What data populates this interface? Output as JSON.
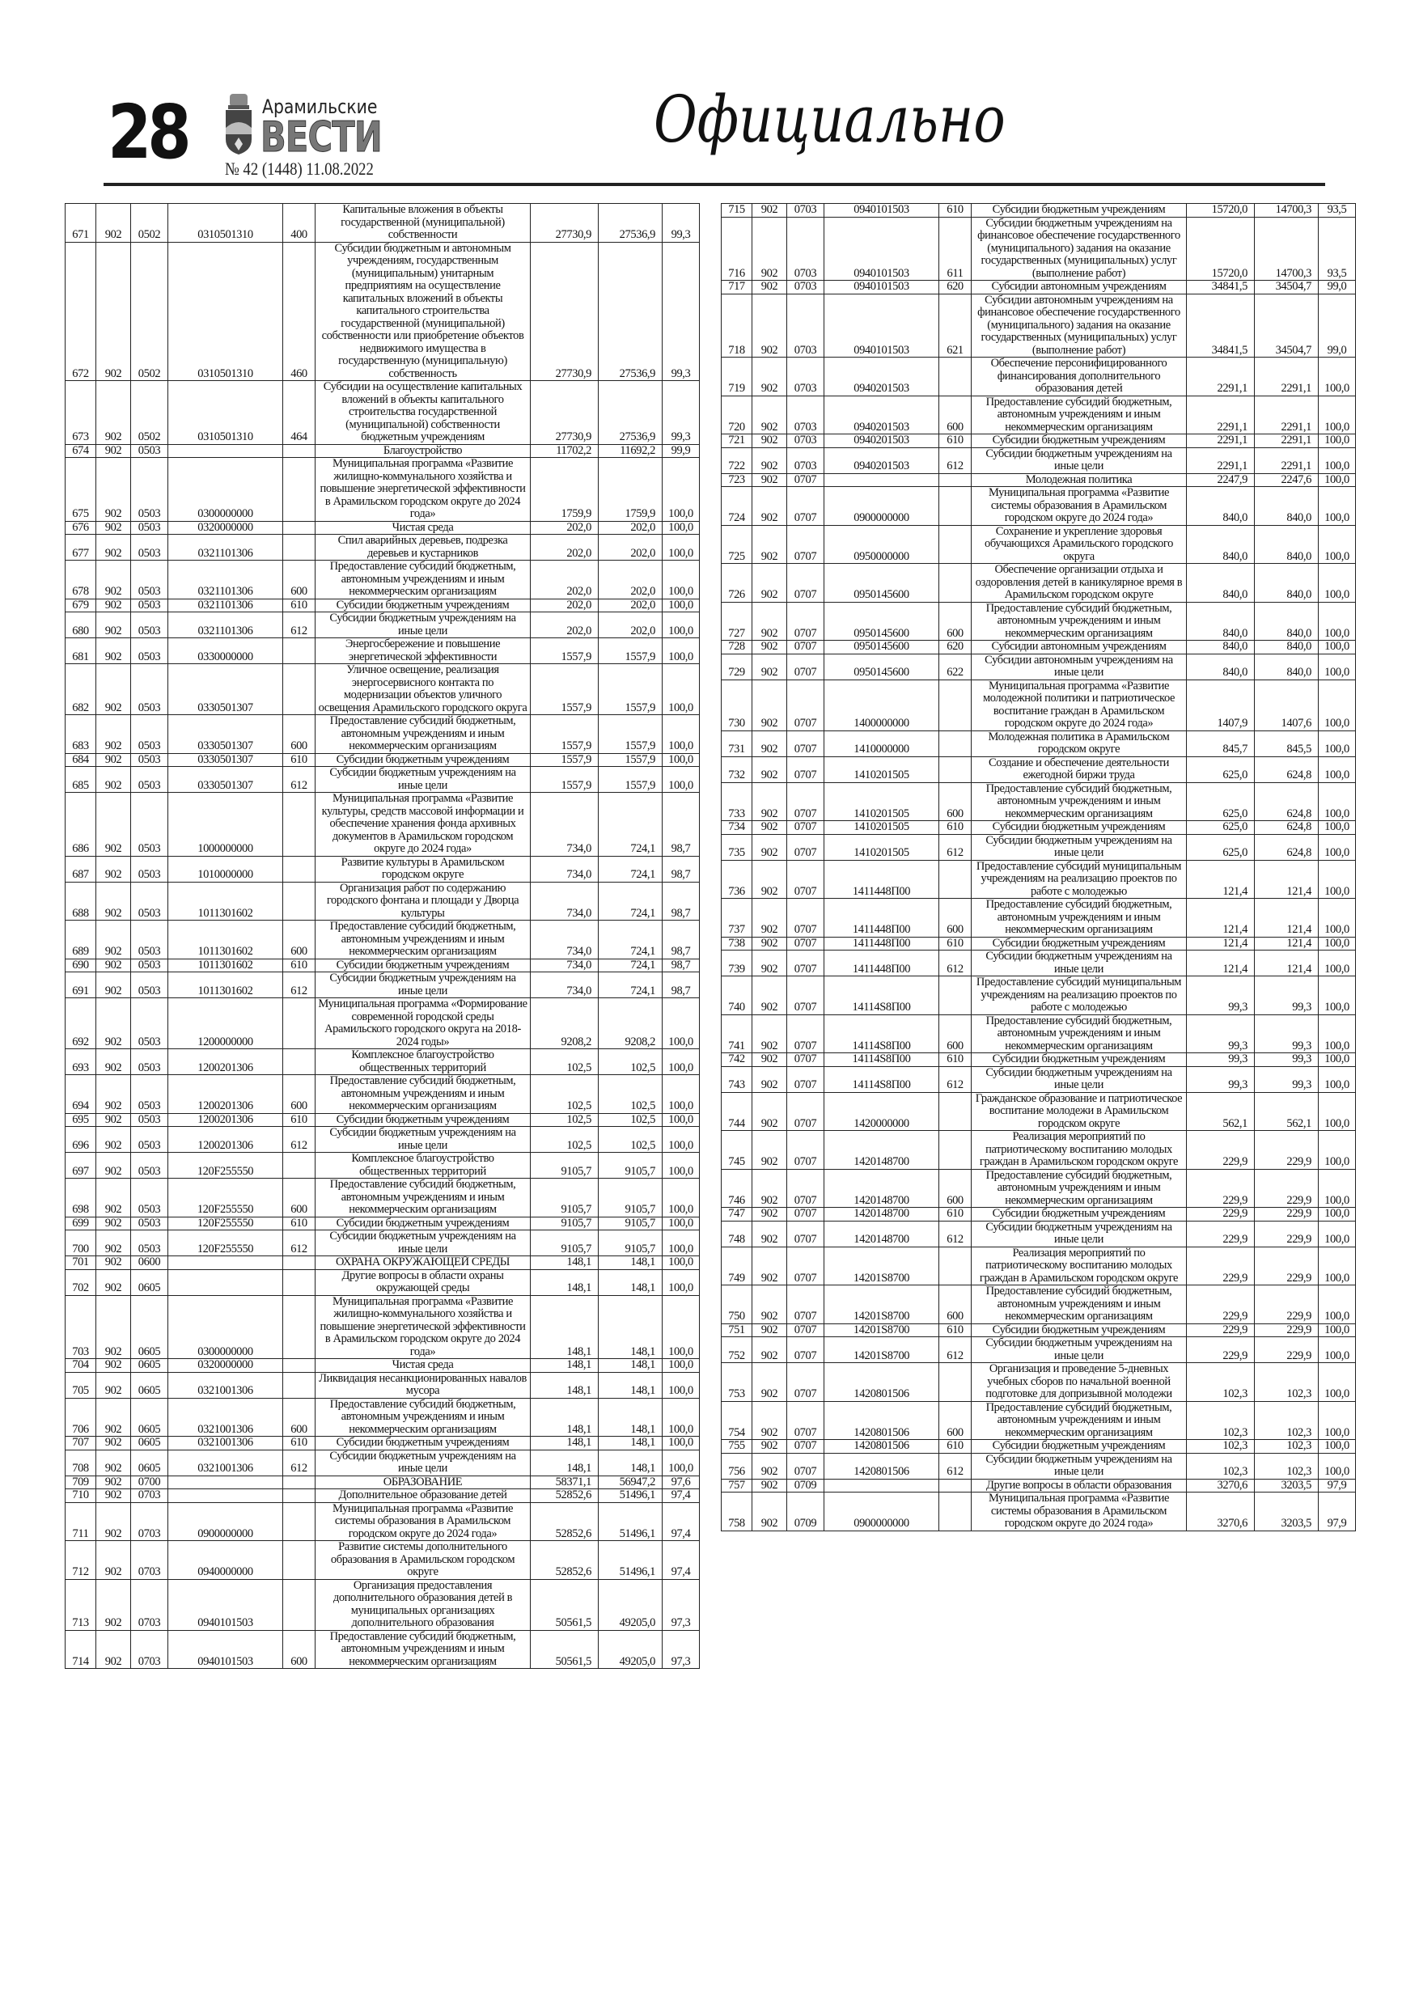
{
  "header": {
    "page_number": "28",
    "brand_top": "Арамильские",
    "brand_main": "ВЕСТИ",
    "issue": "№ 42 (1448) 11.08.2022",
    "section": "Официально"
  },
  "left_table": [
    [
      "671",
      "902",
      "0502",
      "0310501310",
      "400",
      "Капитальные вложения в объекты государственной (муниципальной) собственности",
      "27730,9",
      "27536,9",
      "99,3"
    ],
    [
      "672",
      "902",
      "0502",
      "0310501310",
      "460",
      "Субсидии бюджетным и автономным учреждениям, государственным (муниципальным) унитарным предприятиям на осуществление капитальных вложений в объекты капитального строительства государственной (муниципальной) собственности или приобретение объектов недвижимого имущества в государственную (муниципальную) собственность",
      "27730,9",
      "27536,9",
      "99,3"
    ],
    [
      "673",
      "902",
      "0502",
      "0310501310",
      "464",
      "Субсидии на осуществление капитальных вложений в объекты капитального строительства государственной (муниципальной) собственности бюджетным учреждениям",
      "27730,9",
      "27536,9",
      "99,3"
    ],
    [
      "674",
      "902",
      "0503",
      "",
      "",
      "Благоустройство",
      "11702,2",
      "11692,2",
      "99,9"
    ],
    [
      "675",
      "902",
      "0503",
      "0300000000",
      "",
      "Муниципальная программа «Развитие жилищно-коммунального хозяйства и повышение энергетической эффективности в Арамильском городском округе до 2024 года»",
      "1759,9",
      "1759,9",
      "100,0"
    ],
    [
      "676",
      "902",
      "0503",
      "0320000000",
      "",
      "Чистая среда",
      "202,0",
      "202,0",
      "100,0"
    ],
    [
      "677",
      "902",
      "0503",
      "0321101306",
      "",
      "Спил аварийных деревьев, подрезка деревьев и кустарников",
      "202,0",
      "202,0",
      "100,0"
    ],
    [
      "678",
      "902",
      "0503",
      "0321101306",
      "600",
      "Предоставление субсидий бюджетным, автономным учреждениям и иным некоммерческим организациям",
      "202,0",
      "202,0",
      "100,0"
    ],
    [
      "679",
      "902",
      "0503",
      "0321101306",
      "610",
      "Субсидии бюджетным учреждениям",
      "202,0",
      "202,0",
      "100,0"
    ],
    [
      "680",
      "902",
      "0503",
      "0321101306",
      "612",
      "Субсидии бюджетным учреждениям на иные цели",
      "202,0",
      "202,0",
      "100,0"
    ],
    [
      "681",
      "902",
      "0503",
      "0330000000",
      "",
      "Энергосбережение и повышение энергетической эффективности",
      "1557,9",
      "1557,9",
      "100,0"
    ],
    [
      "682",
      "902",
      "0503",
      "0330501307",
      "",
      "Уличное освещение, реализация энергосервисного контакта по модернизации объектов уличного освещения Арамильского городского округа",
      "1557,9",
      "1557,9",
      "100,0"
    ],
    [
      "683",
      "902",
      "0503",
      "0330501307",
      "600",
      "Предоставление субсидий бюджетным, автономным учреждениям и иным некоммерческим организациям",
      "1557,9",
      "1557,9",
      "100,0"
    ],
    [
      "684",
      "902",
      "0503",
      "0330501307",
      "610",
      "Субсидии бюджетным учреждениям",
      "1557,9",
      "1557,9",
      "100,0"
    ],
    [
      "685",
      "902",
      "0503",
      "0330501307",
      "612",
      "Субсидии бюджетным учреждениям на иные цели",
      "1557,9",
      "1557,9",
      "100,0"
    ],
    [
      "686",
      "902",
      "0503",
      "1000000000",
      "",
      "Муниципальная программа «Развитие культуры, средств массовой информации и обеспечение хранения фонда архивных документов в Арамильском городском округе до 2024 года»",
      "734,0",
      "724,1",
      "98,7"
    ],
    [
      "687",
      "902",
      "0503",
      "1010000000",
      "",
      "Развитие культуры в Арамильском городском округе",
      "734,0",
      "724,1",
      "98,7"
    ],
    [
      "688",
      "902",
      "0503",
      "1011301602",
      "",
      "Организация работ по содержанию городского фонтана и площади у Дворца культуры",
      "734,0",
      "724,1",
      "98,7"
    ],
    [
      "689",
      "902",
      "0503",
      "1011301602",
      "600",
      "Предоставление субсидий бюджетным, автономным учреждениям и иным некоммерческим организациям",
      "734,0",
      "724,1",
      "98,7"
    ],
    [
      "690",
      "902",
      "0503",
      "1011301602",
      "610",
      "Субсидии бюджетным учреждениям",
      "734,0",
      "724,1",
      "98,7"
    ],
    [
      "691",
      "902",
      "0503",
      "1011301602",
      "612",
      "Субсидии бюджетным учреждениям на иные цели",
      "734,0",
      "724,1",
      "98,7"
    ],
    [
      "692",
      "902",
      "0503",
      "1200000000",
      "",
      "Муниципальная программа «Формирование современной городской среды Арамильского городского округа на 2018-2024 годы»",
      "9208,2",
      "9208,2",
      "100,0"
    ],
    [
      "693",
      "902",
      "0503",
      "1200201306",
      "",
      "Комплексное благоустройство общественных территорий",
      "102,5",
      "102,5",
      "100,0"
    ],
    [
      "694",
      "902",
      "0503",
      "1200201306",
      "600",
      "Предоставление субсидий бюджетным, автономным учреждениям и иным некоммерческим организациям",
      "102,5",
      "102,5",
      "100,0"
    ],
    [
      "695",
      "902",
      "0503",
      "1200201306",
      "610",
      "Субсидии бюджетным учреждениям",
      "102,5",
      "102,5",
      "100,0"
    ],
    [
      "696",
      "902",
      "0503",
      "1200201306",
      "612",
      "Субсидии бюджетным учреждениям на иные цели",
      "102,5",
      "102,5",
      "100,0"
    ],
    [
      "697",
      "902",
      "0503",
      "120F255550",
      "",
      "Комплексное благоустройство общественных территорий",
      "9105,7",
      "9105,7",
      "100,0"
    ],
    [
      "698",
      "902",
      "0503",
      "120F255550",
      "600",
      "Предоставление субсидий бюджетным, автономным учреждениям и иным некоммерческим организациям",
      "9105,7",
      "9105,7",
      "100,0"
    ],
    [
      "699",
      "902",
      "0503",
      "120F255550",
      "610",
      "Субсидии бюджетным учреждениям",
      "9105,7",
      "9105,7",
      "100,0"
    ],
    [
      "700",
      "902",
      "0503",
      "120F255550",
      "612",
      "Субсидии бюджетным учреждениям на иные цели",
      "9105,7",
      "9105,7",
      "100,0"
    ],
    [
      "701",
      "902",
      "0600",
      "",
      "",
      "ОХРАНА ОКРУЖАЮЩЕЙ СРЕДЫ",
      "148,1",
      "148,1",
      "100,0"
    ],
    [
      "702",
      "902",
      "0605",
      "",
      "",
      "Другие вопросы в области охраны окружающей среды",
      "148,1",
      "148,1",
      "100,0"
    ],
    [
      "703",
      "902",
      "0605",
      "0300000000",
      "",
      "Муниципальная программа «Развитие жилищно-коммунального хозяйства и повышение энергетической эффективности в Арамильском городском округе до 2024 года»",
      "148,1",
      "148,1",
      "100,0"
    ],
    [
      "704",
      "902",
      "0605",
      "0320000000",
      "",
      "Чистая среда",
      "148,1",
      "148,1",
      "100,0"
    ],
    [
      "705",
      "902",
      "0605",
      "0321001306",
      "",
      "Ликвидация несанкционированных навалов мусора",
      "148,1",
      "148,1",
      "100,0"
    ],
    [
      "706",
      "902",
      "0605",
      "0321001306",
      "600",
      "Предоставление субсидий бюджетным, автономным учреждениям и иным некоммерческим организациям",
      "148,1",
      "148,1",
      "100,0"
    ],
    [
      "707",
      "902",
      "0605",
      "0321001306",
      "610",
      "Субсидии бюджетным учреждениям",
      "148,1",
      "148,1",
      "100,0"
    ],
    [
      "708",
      "902",
      "0605",
      "0321001306",
      "612",
      "Субсидии бюджетным учреждениям на иные цели",
      "148,1",
      "148,1",
      "100,0"
    ],
    [
      "709",
      "902",
      "0700",
      "",
      "",
      "ОБРАЗОВАНИЕ",
      "58371,1",
      "56947,2",
      "97,6"
    ],
    [
      "710",
      "902",
      "0703",
      "",
      "",
      "Дополнительное образование детей",
      "52852,6",
      "51496,1",
      "97,4"
    ],
    [
      "711",
      "902",
      "0703",
      "0900000000",
      "",
      "Муниципальная программа «Развитие системы образования в Арамильском городском округе до 2024 года»",
      "52852,6",
      "51496,1",
      "97,4"
    ],
    [
      "712",
      "902",
      "0703",
      "0940000000",
      "",
      "Развитие системы дополнительного образования в Арамильском городском округе",
      "52852,6",
      "51496,1",
      "97,4"
    ],
    [
      "713",
      "902",
      "0703",
      "0940101503",
      "",
      "Организация предоставления дополнительного образования детей в муниципальных организациях дополнительного образования",
      "50561,5",
      "49205,0",
      "97,3"
    ],
    [
      "714",
      "902",
      "0703",
      "0940101503",
      "600",
      "Предоставление субсидий бюджетным, автономным учреждениям и иным некоммерческим организациям",
      "50561,5",
      "49205,0",
      "97,3"
    ]
  ],
  "right_table": [
    [
      "715",
      "902",
      "0703",
      "0940101503",
      "610",
      "Субсидии бюджетным учреждениям",
      "15720,0",
      "14700,3",
      "93,5"
    ],
    [
      "716",
      "902",
      "0703",
      "0940101503",
      "611",
      "Субсидии бюджетным учреждениям на финансовое обеспечение государственного (муниципального) задания на оказание государственных (муниципальных) услуг (выполнение работ)",
      "15720,0",
      "14700,3",
      "93,5"
    ],
    [
      "717",
      "902",
      "0703",
      "0940101503",
      "620",
      "Субсидии автономным учреждениям",
      "34841,5",
      "34504,7",
      "99,0"
    ],
    [
      "718",
      "902",
      "0703",
      "0940101503",
      "621",
      "Субсидии автономным учреждениям на финансовое обеспечение государственного (муниципального) задания на оказание государственных (муниципальных) услуг (выполнение работ)",
      "34841,5",
      "34504,7",
      "99,0"
    ],
    [
      "719",
      "902",
      "0703",
      "0940201503",
      "",
      "Обеспечение персонифицированного финансирования дополнительного образования детей",
      "2291,1",
      "2291,1",
      "100,0"
    ],
    [
      "720",
      "902",
      "0703",
      "0940201503",
      "600",
      "Предоставление субсидий бюджетным, автономным учреждениям и иным некоммерческим организациям",
      "2291,1",
      "2291,1",
      "100,0"
    ],
    [
      "721",
      "902",
      "0703",
      "0940201503",
      "610",
      "Субсидии бюджетным учреждениям",
      "2291,1",
      "2291,1",
      "100,0"
    ],
    [
      "722",
      "902",
      "0703",
      "0940201503",
      "612",
      "Субсидии бюджетным учреждениям на иные цели",
      "2291,1",
      "2291,1",
      "100,0"
    ],
    [
      "723",
      "902",
      "0707",
      "",
      "",
      "Молодежная политика",
      "2247,9",
      "2247,6",
      "100,0"
    ],
    [
      "724",
      "902",
      "0707",
      "0900000000",
      "",
      "Муниципальная программа «Развитие системы образования в Арамильском городском округе до 2024 года»",
      "840,0",
      "840,0",
      "100,0"
    ],
    [
      "725",
      "902",
      "0707",
      "0950000000",
      "",
      "Сохранение и укрепление здоровья обучающихся Арамильского городского округа",
      "840,0",
      "840,0",
      "100,0"
    ],
    [
      "726",
      "902",
      "0707",
      "0950145600",
      "",
      "Обеспечение организации отдыха и оздоровления детей в каникулярное время в Арамильском городском округе",
      "840,0",
      "840,0",
      "100,0"
    ],
    [
      "727",
      "902",
      "0707",
      "0950145600",
      "600",
      "Предоставление субсидий бюджетным, автономным учреждениям и иным некоммерческим организациям",
      "840,0",
      "840,0",
      "100,0"
    ],
    [
      "728",
      "902",
      "0707",
      "0950145600",
      "620",
      "Субсидии автономным учреждениям",
      "840,0",
      "840,0",
      "100,0"
    ],
    [
      "729",
      "902",
      "0707",
      "0950145600",
      "622",
      "Субсидии автономным учреждениям на иные цели",
      "840,0",
      "840,0",
      "100,0"
    ],
    [
      "730",
      "902",
      "0707",
      "1400000000",
      "",
      "Муниципальная программа «Развитие молодежной политики и патриотическое воспитание граждан в Арамильском городском округе до 2024 года»",
      "1407,9",
      "1407,6",
      "100,0"
    ],
    [
      "731",
      "902",
      "0707",
      "1410000000",
      "",
      "Молодежная политика в Арамильском городском округе",
      "845,7",
      "845,5",
      "100,0"
    ],
    [
      "732",
      "902",
      "0707",
      "1410201505",
      "",
      "Создание и обеспечение деятельности ежегодной биржи труда",
      "625,0",
      "624,8",
      "100,0"
    ],
    [
      "733",
      "902",
      "0707",
      "1410201505",
      "600",
      "Предоставление субсидий бюджетным, автономным учреждениям и иным некоммерческим организациям",
      "625,0",
      "624,8",
      "100,0"
    ],
    [
      "734",
      "902",
      "0707",
      "1410201505",
      "610",
      "Субсидии бюджетным учреждениям",
      "625,0",
      "624,8",
      "100,0"
    ],
    [
      "735",
      "902",
      "0707",
      "1410201505",
      "612",
      "Субсидии бюджетным учреждениям на иные цели",
      "625,0",
      "624,8",
      "100,0"
    ],
    [
      "736",
      "902",
      "0707",
      "1411448П00",
      "",
      "Предоставление субсидий муниципальным учреждениям на реализацию проектов по работе с молодежью",
      "121,4",
      "121,4",
      "100,0"
    ],
    [
      "737",
      "902",
      "0707",
      "1411448П00",
      "600",
      "Предоставление субсидий бюджетным, автономным учреждениям и иным некоммерческим организациям",
      "121,4",
      "121,4",
      "100,0"
    ],
    [
      "738",
      "902",
      "0707",
      "1411448П00",
      "610",
      "Субсидии бюджетным учреждениям",
      "121,4",
      "121,4",
      "100,0"
    ],
    [
      "739",
      "902",
      "0707",
      "1411448П00",
      "612",
      "Субсидии бюджетным учреждениям на иные цели",
      "121,4",
      "121,4",
      "100,0"
    ],
    [
      "740",
      "902",
      "0707",
      "14114S8П00",
      "",
      "Предоставление субсидий муниципальным учреждениям на реализацию проектов по работе с молодежью",
      "99,3",
      "99,3",
      "100,0"
    ],
    [
      "741",
      "902",
      "0707",
      "14114S8П00",
      "600",
      "Предоставление субсидий бюджетным, автономным учреждениям и иным некоммерческим организациям",
      "99,3",
      "99,3",
      "100,0"
    ],
    [
      "742",
      "902",
      "0707",
      "14114S8П00",
      "610",
      "Субсидии бюджетным учреждениям",
      "99,3",
      "99,3",
      "100,0"
    ],
    [
      "743",
      "902",
      "0707",
      "14114S8П00",
      "612",
      "Субсидии бюджетным учреждениям на иные цели",
      "99,3",
      "99,3",
      "100,0"
    ],
    [
      "744",
      "902",
      "0707",
      "1420000000",
      "",
      "Гражданское образование и патриотическое воспитание молодежи в Арамильском городском округе",
      "562,1",
      "562,1",
      "100,0"
    ],
    [
      "745",
      "902",
      "0707",
      "1420148700",
      "",
      "Реализация мероприятий по патриотическому воспитанию молодых граждан в Арамильском городском округе",
      "229,9",
      "229,9",
      "100,0"
    ],
    [
      "746",
      "902",
      "0707",
      "1420148700",
      "600",
      "Предоставление субсидий бюджетным, автономным учреждениям и иным некоммерческим организациям",
      "229,9",
      "229,9",
      "100,0"
    ],
    [
      "747",
      "902",
      "0707",
      "1420148700",
      "610",
      "Субсидии бюджетным учреждениям",
      "229,9",
      "229,9",
      "100,0"
    ],
    [
      "748",
      "902",
      "0707",
      "1420148700",
      "612",
      "Субсидии бюджетным учреждениям на иные цели",
      "229,9",
      "229,9",
      "100,0"
    ],
    [
      "749",
      "902",
      "0707",
      "14201S8700",
      "",
      "Реализация мероприятий по патриотическому воспитанию молодых граждан в Арамильском городском округе",
      "229,9",
      "229,9",
      "100,0"
    ],
    [
      "750",
      "902",
      "0707",
      "14201S8700",
      "600",
      "Предоставление субсидий бюджетным, автономным учреждениям и иным некоммерческим организациям",
      "229,9",
      "229,9",
      "100,0"
    ],
    [
      "751",
      "902",
      "0707",
      "14201S8700",
      "610",
      "Субсидии бюджетным учреждениям",
      "229,9",
      "229,9",
      "100,0"
    ],
    [
      "752",
      "902",
      "0707",
      "14201S8700",
      "612",
      "Субсидии бюджетным учреждениям на иные цели",
      "229,9",
      "229,9",
      "100,0"
    ],
    [
      "753",
      "902",
      "0707",
      "1420801506",
      "",
      "Организация и проведение 5-дневных учебных сборов по начальной военной подготовке для допризывной молодежи",
      "102,3",
      "102,3",
      "100,0"
    ],
    [
      "754",
      "902",
      "0707",
      "1420801506",
      "600",
      "Предоставление субсидий бюджетным, автономным учреждениям и иным некоммерческим организациям",
      "102,3",
      "102,3",
      "100,0"
    ],
    [
      "755",
      "902",
      "0707",
      "1420801506",
      "610",
      "Субсидии бюджетным учреждениям",
      "102,3",
      "102,3",
      "100,0"
    ],
    [
      "756",
      "902",
      "0707",
      "1420801506",
      "612",
      "Субсидии бюджетным учреждениям на иные цели",
      "102,3",
      "102,3",
      "100,0"
    ],
    [
      "757",
      "902",
      "0709",
      "",
      "",
      "Другие вопросы в области образования",
      "3270,6",
      "3203,5",
      "97,9"
    ],
    [
      "758",
      "902",
      "0709",
      "0900000000",
      "",
      "Муниципальная программа «Развитие системы образования в Арамильском городском округе до 2024 года»",
      "3270,6",
      "3203,5",
      "97,9"
    ]
  ]
}
